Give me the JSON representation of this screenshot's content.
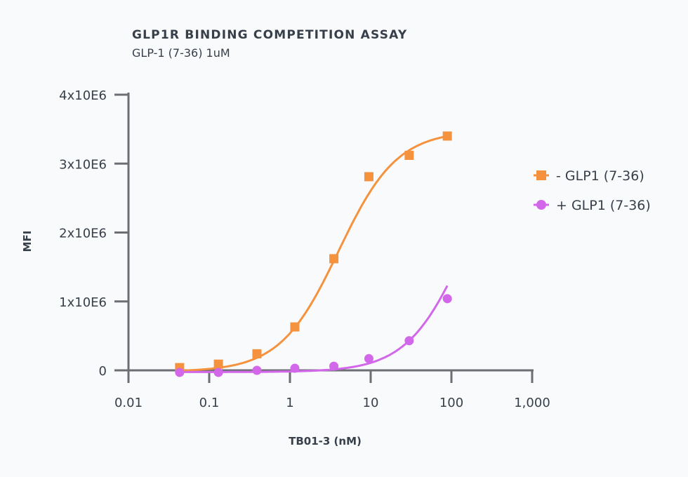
{
  "chart_data": {
    "type": "scatter",
    "title": "GLP1R BINDING COMPETITION ASSAY",
    "subtitle": "GLP-1 (7-36) 1uM",
    "xlabel": "TB01-3 (nM)",
    "ylabel": "MFI",
    "xscale": "log",
    "xlim": [
      0.01,
      1000
    ],
    "ylim": [
      0,
      4000000
    ],
    "xticks": [
      "0.01",
      "0.1",
      "1",
      "10",
      "100",
      "1,000"
    ],
    "yticks": [
      "0",
      "1x10E6",
      "2x10E6",
      "3x10E6",
      "4x10E6"
    ],
    "grid": false,
    "legend_position": "right",
    "series": [
      {
        "name": "- GLP1 (7-36)",
        "color": "#f5923e",
        "marker": "square",
        "fit": "sigmoidal",
        "x": [
          0.043,
          0.13,
          0.39,
          1.15,
          3.5,
          9.5,
          30,
          89
        ],
        "y": [
          40000,
          90000,
          240000,
          630000,
          1620000,
          2810000,
          3120000,
          3400000
        ]
      },
      {
        "name": "+ GLP1 (7-36)",
        "color": "#d267ea",
        "marker": "circle",
        "fit": "smooth",
        "x": [
          0.043,
          0.13,
          0.39,
          1.15,
          3.5,
          9.5,
          30,
          89
        ],
        "y": [
          -30000,
          -30000,
          0,
          30000,
          60000,
          170000,
          430000,
          1040000
        ]
      }
    ]
  }
}
